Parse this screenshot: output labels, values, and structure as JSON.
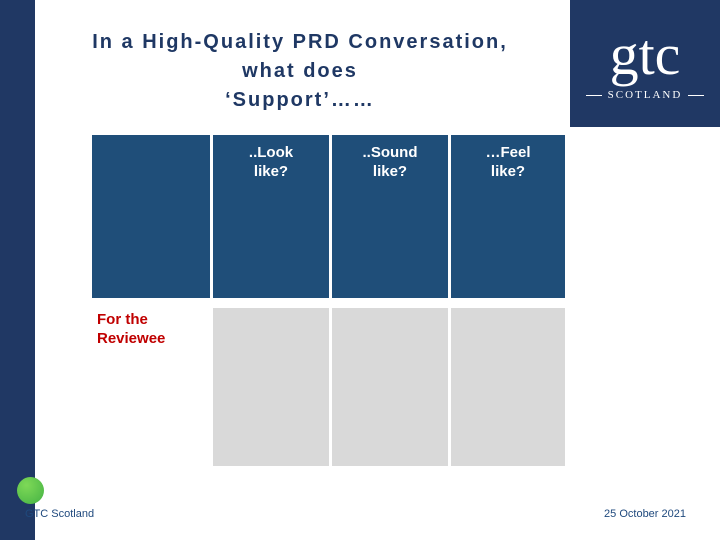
{
  "title": {
    "lines": [
      "In a High-Quality PRD Conversation,",
      "what does",
      "‘Support’……"
    ]
  },
  "logo": {
    "name": "gtc",
    "region": "SCOTLAND"
  },
  "table": {
    "headers": [
      "..Look\nlike?",
      "..Sound\nlike?",
      "…Feel\nlike?"
    ],
    "rows": [
      {
        "label": "For the\nReviewee",
        "cells": [
          "",
          "",
          ""
        ]
      }
    ]
  },
  "footer": {
    "left": "GTC Scotland",
    "right": "25 October 2021"
  },
  "colors": {
    "accent_navy": "#203864",
    "table_header_navy": "#1f4e79",
    "gray_cell": "#d9d9d9",
    "label_red": "#c00000",
    "title_navy": "#1f3864",
    "footer_blue": "#1f497d",
    "dot_green": "#5cc24e"
  }
}
